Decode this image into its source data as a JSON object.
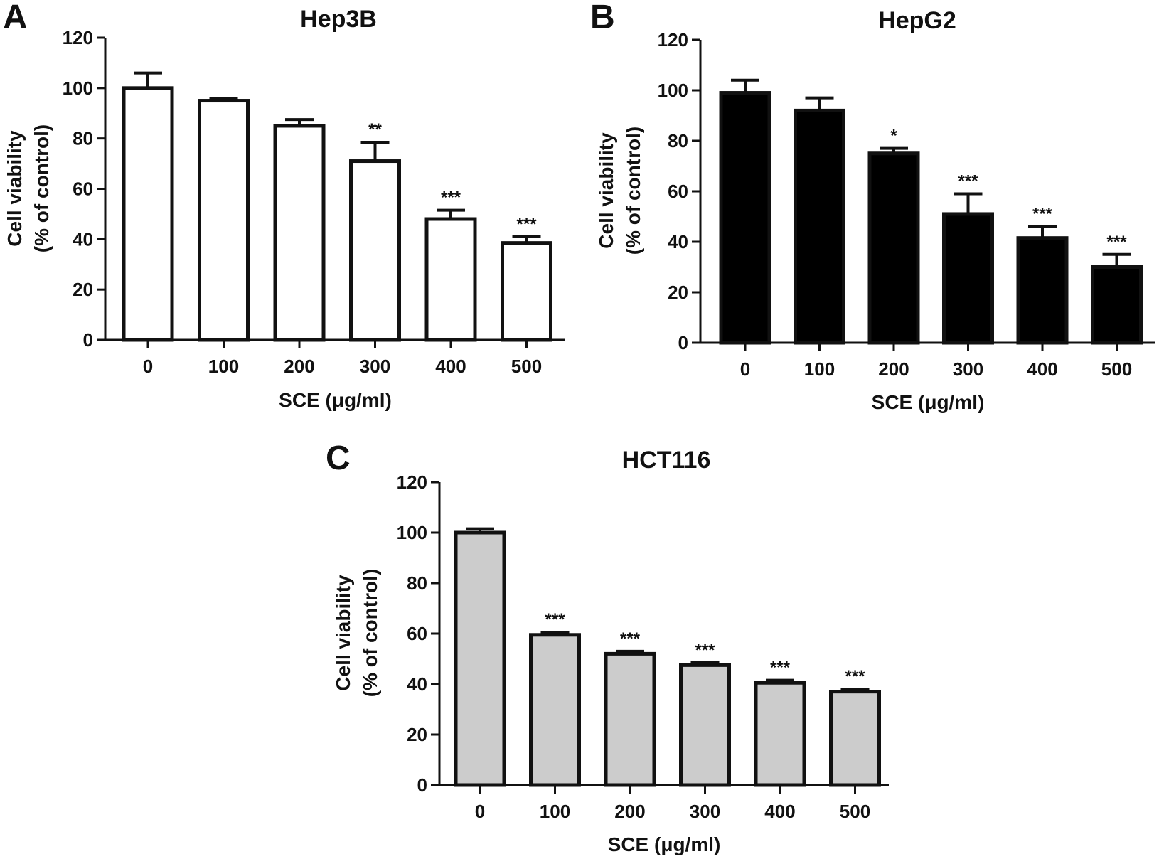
{
  "figure": {
    "background": "#ffffff",
    "axis_color": "#111111"
  },
  "chart_data": [
    {
      "panel": "A",
      "type": "bar",
      "title": "Hep3B",
      "xlabel": "SCE (μg/ml)",
      "ylabel_line1": "Cell viability",
      "ylabel_line2": "(% of control)",
      "ylim": [
        0,
        120
      ],
      "yticks": [
        0,
        20,
        40,
        60,
        80,
        100,
        120
      ],
      "categories": [
        "0",
        "100",
        "200",
        "300",
        "400",
        "500"
      ],
      "values": [
        100,
        95,
        85,
        71,
        48,
        38.5
      ],
      "errors": [
        6,
        1,
        2.5,
        7.5,
        3.5,
        2.5
      ],
      "annotations": [
        "",
        "",
        "",
        "**",
        "***",
        "***"
      ],
      "bar_color": "#ffffff"
    },
    {
      "panel": "B",
      "type": "bar",
      "title": "HepG2",
      "xlabel": "SCE (μg/ml)",
      "ylabel_line1": "Cell viability",
      "ylabel_line2": "(% of control)",
      "ylim": [
        0,
        120
      ],
      "yticks": [
        0,
        20,
        40,
        60,
        80,
        100,
        120
      ],
      "categories": [
        "0",
        "100",
        "200",
        "300",
        "400",
        "500"
      ],
      "values": [
        99,
        92,
        75,
        51,
        41.5,
        30
      ],
      "errors": [
        5,
        5,
        2,
        8,
        4.5,
        5
      ],
      "annotations": [
        "",
        "",
        "*",
        "***",
        "***",
        "***"
      ],
      "bar_color": "#000000"
    },
    {
      "panel": "C",
      "type": "bar",
      "title": "HCT116",
      "xlabel": "SCE (μg/ml)",
      "ylabel_line1": "Cell viability",
      "ylabel_line2": "(% of control)",
      "ylim": [
        0,
        120
      ],
      "yticks": [
        0,
        20,
        40,
        60,
        80,
        100,
        120
      ],
      "categories": [
        "0",
        "100",
        "200",
        "300",
        "400",
        "500"
      ],
      "values": [
        100,
        59.5,
        52,
        47.5,
        40.5,
        37
      ],
      "errors": [
        1.5,
        1,
        1,
        1,
        1,
        1
      ],
      "annotations": [
        "",
        "***",
        "***",
        "***",
        "***",
        "***"
      ],
      "bar_color": "#cccccc"
    }
  ]
}
